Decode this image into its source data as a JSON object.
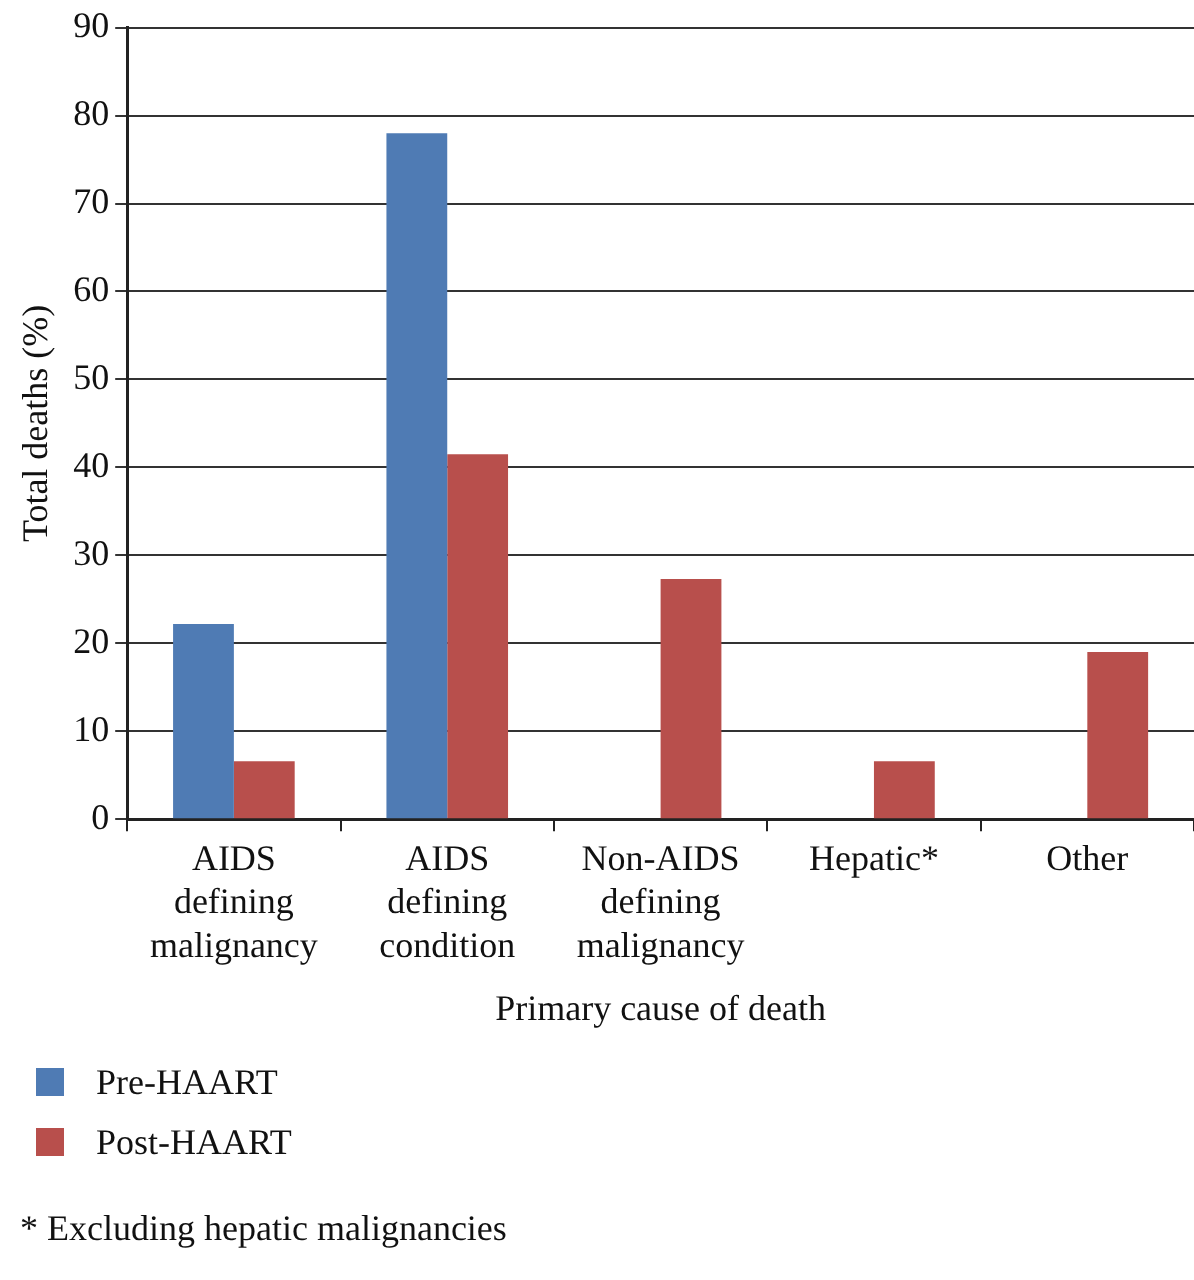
{
  "chart_data": {
    "type": "bar",
    "xlabel": "Primary cause of death",
    "ylabel": "Total deaths (%)",
    "categories": [
      "AIDS defining malignancy",
      "AIDS defining condition",
      "Non-AIDS defining malignancy",
      "Hepatic*",
      "Other"
    ],
    "series": [
      {
        "name": "Pre-HAART",
        "color": "#4f7bb4",
        "values": [
          22.2,
          78.0,
          0,
          0,
          0
        ]
      },
      {
        "name": "Post-HAART",
        "color": "#b84f4c",
        "values": [
          6.6,
          41.5,
          27.3,
          6.6,
          19.0
        ]
      }
    ],
    "ylim": [
      0,
      90
    ],
    "yticks": [
      0,
      10,
      20,
      30,
      40,
      50,
      60,
      70,
      80,
      90
    ],
    "grid": "y",
    "legend": "bottom left",
    "annotations": [
      "* Excluding hepatic malignancies"
    ]
  }
}
